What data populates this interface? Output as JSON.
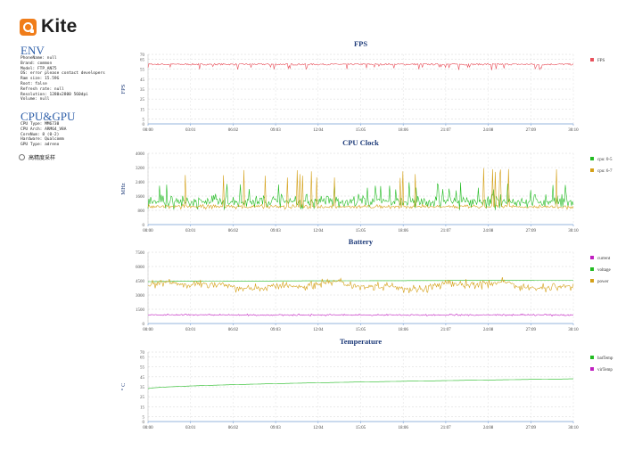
{
  "app": {
    "name": "Kite"
  },
  "env": {
    "title": "ENV",
    "lines": [
      "PhoneName: null",
      "Brand: common",
      "Model: FTP_AN75",
      "OS: error please contact developers",
      "Ram size: 15.59G",
      "Root: false",
      "Refresh rate: null",
      "Resolution: 1280x2800 560dpi",
      "Volume: null"
    ]
  },
  "cpu_gpu": {
    "title": "CPU&GPU",
    "lines": [
      "CPU Type: MM6730",
      "CPU Arch: ARM64_V8A",
      "CoreNum: 8 (0-2)",
      "Hardware: Qualcomm",
      "GPU Type: adreno"
    ]
  },
  "toggle": {
    "label": "高精度采样"
  },
  "time_ticks": [
    "00:00",
    "03:01",
    "06:02",
    "09:03",
    "12:04",
    "15:05",
    "18:06",
    "21:07",
    "24:08",
    "27:09",
    "30:10"
  ],
  "chart_data": [
    {
      "type": "line",
      "title": "FPS",
      "ylabel": "FPS",
      "xlabel": "",
      "ylim": [
        0,
        70
      ],
      "yticks": [
        0,
        5,
        15,
        25,
        35,
        45,
        55,
        65,
        70
      ],
      "grid": true,
      "legend_position": "right",
      "series": [
        {
          "name": "FPS",
          "color": "#e8505b",
          "base": 60,
          "noise": 0.8,
          "dips": 36,
          "dip_depth": 4
        }
      ]
    },
    {
      "type": "line",
      "title": "CPU Clock",
      "ylabel": "MHz",
      "xlabel": "",
      "ylim": [
        0,
        4000
      ],
      "yticks": [
        0,
        800,
        1600,
        2400,
        3200,
        4000
      ],
      "grid": true,
      "legend_position": "right",
      "series": [
        {
          "name": "cpu: 0-5",
          "color": "#22bb22",
          "base": 1300,
          "noise": 500,
          "spikes": 28,
          "spike_to": 2400
        },
        {
          "name": "cpu: 6-7",
          "color": "#d4a017",
          "base": 1000,
          "noise": 150,
          "spikes": 22,
          "spike_to": 3200
        }
      ]
    },
    {
      "type": "line",
      "title": "Battery",
      "ylabel": "",
      "xlabel": "",
      "ylim": [
        0,
        7500
      ],
      "yticks": [
        0,
        1500,
        3000,
        4500,
        6000,
        7500
      ],
      "grid": true,
      "legend_position": "right",
      "series": [
        {
          "name": "current",
          "color": "#c020c0",
          "base": 900,
          "noise": 120
        },
        {
          "name": "voltage",
          "color": "#22bb22",
          "base": 4400,
          "noise": 0,
          "trend": [
            4400,
            4550
          ]
        },
        {
          "name": "power",
          "color": "#d4a017",
          "base": 4000,
          "noise": 600,
          "wave": 500
        }
      ]
    },
    {
      "type": "line",
      "title": "Temperature",
      "ylabel": "° C",
      "xlabel": "",
      "ylim": [
        0,
        70
      ],
      "yticks": [
        0,
        5,
        15,
        25,
        35,
        45,
        55,
        65,
        70
      ],
      "grid": true,
      "legend_position": "right",
      "series": [
        {
          "name": "batTemp",
          "color": "#22bb22",
          "base": 33,
          "noise": 0,
          "trend": [
            33,
            43
          ]
        },
        {
          "name": "virTemp",
          "color": "#c020c0",
          "visible_data": false
        }
      ]
    }
  ]
}
